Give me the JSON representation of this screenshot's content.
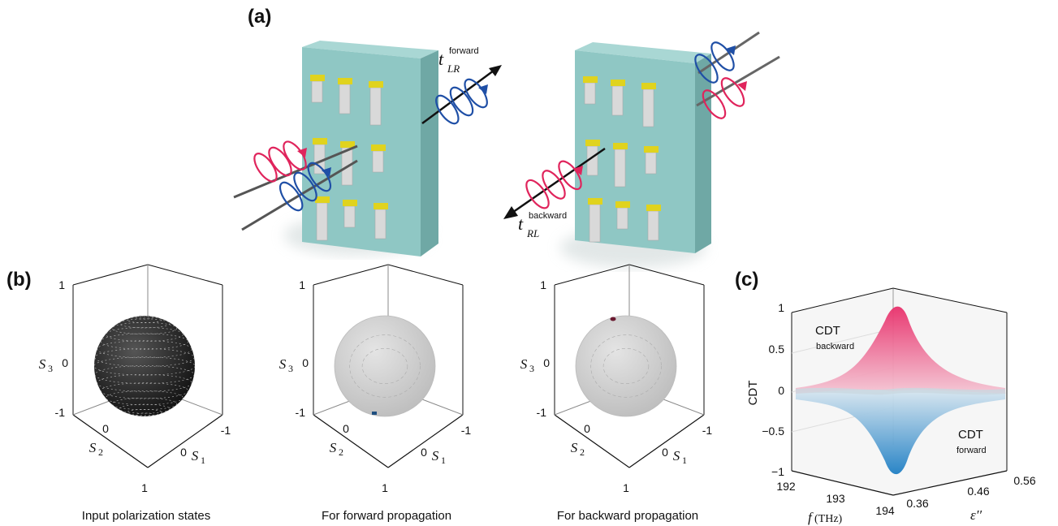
{
  "panel_a": {
    "label": "(a)",
    "forward_symbol": {
      "t": "t",
      "sup": "forward",
      "sub": "LR"
    },
    "backward_symbol": {
      "t": "t",
      "sup": "backward",
      "sub": "RL"
    }
  },
  "panel_b": {
    "label": "(b)",
    "spheres": [
      {
        "caption": "Input polarization states"
      },
      {
        "caption": "For forward propagation"
      },
      {
        "caption": "For backward propagation"
      }
    ],
    "axes": {
      "s3_label": "S",
      "s3_sub": "3",
      "s2_label": "S",
      "s2_sub": "2",
      "s1_label": "S",
      "s1_sub": "1",
      "s3_ticks": [
        "1",
        "0",
        "-1"
      ],
      "s2_ticks": [
        "0",
        "1"
      ],
      "s1_ticks": [
        "-1",
        "0"
      ]
    }
  },
  "panel_c": {
    "label": "(c)",
    "zlabel": "CDT",
    "z_ticks": [
      "1",
      "0.5",
      "0",
      "−0.5",
      "−1"
    ],
    "f_ticks": [
      "192",
      "193",
      "194"
    ],
    "eps_ticks": [
      "0.36",
      "0.46",
      "0.56"
    ],
    "xlabel_f": "f",
    "xlabel_unit": "(THz)",
    "ylabel_eps": "ε′′",
    "annot_backward_main": "CDT",
    "annot_backward_sub": "backward",
    "annot_forward_main": "CDT",
    "annot_forward_sub": "forward"
  },
  "colors": {
    "slab": "#8fc7c4",
    "slab_side": "#6fa8a5",
    "gold": "#e0d31e",
    "forward_helix": "#1f4fa6",
    "backward_helix": "#e0245c",
    "surface_top": "#e8306b",
    "surface_bottom": "#1f7fc4"
  }
}
